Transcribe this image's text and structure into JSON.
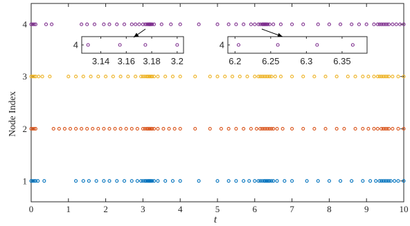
{
  "chart_data": {
    "type": "scatter",
    "xlabel": "t",
    "ylabel": "Node Index",
    "xlim": [
      0,
      10
    ],
    "ylim": [
      0.6,
      4.4
    ],
    "x_ticks": [
      0,
      1,
      2,
      3,
      4,
      5,
      6,
      7,
      8,
      9,
      10
    ],
    "y_ticks": [
      1,
      2,
      3,
      4
    ],
    "grid": false,
    "legend": "none",
    "marker": "open-circle",
    "series": [
      {
        "node": 4,
        "color": "#7e2f8e",
        "x": [
          0.0,
          0.04,
          0.08,
          0.12,
          0.4,
          0.55,
          1.35,
          1.5,
          1.7,
          1.95,
          2.1,
          2.3,
          2.5,
          2.7,
          2.8,
          2.9,
          3.0,
          3.06,
          3.1,
          3.13,
          3.15,
          3.17,
          3.18,
          3.19,
          3.2,
          3.22,
          3.25,
          3.3,
          3.5,
          3.75,
          4.0,
          4.5,
          5.0,
          5.3,
          5.5,
          5.7,
          5.9,
          6.0,
          6.1,
          6.15,
          6.2,
          6.22,
          6.24,
          6.26,
          6.28,
          6.3,
          6.32,
          6.35,
          6.4,
          6.5,
          6.7,
          7.0,
          7.3,
          7.7,
          8.0,
          8.3,
          8.6,
          8.8,
          9.0,
          9.2,
          9.3,
          9.35,
          9.4,
          9.45,
          9.5,
          9.55,
          9.6,
          9.7,
          9.8,
          9.9,
          10.0
        ]
      },
      {
        "node": 3,
        "color": "#edb120",
        "x": [
          0.0,
          0.04,
          0.08,
          0.12,
          0.2,
          0.3,
          0.5,
          1.0,
          1.2,
          1.4,
          1.6,
          1.8,
          2.0,
          2.2,
          2.4,
          2.6,
          2.8,
          2.95,
          3.0,
          3.05,
          3.1,
          3.13,
          3.16,
          3.19,
          3.22,
          3.25,
          3.3,
          3.4,
          3.6,
          3.8,
          4.0,
          4.4,
          4.8,
          5.0,
          5.2,
          5.4,
          5.6,
          5.8,
          6.0,
          6.1,
          6.15,
          6.2,
          6.25,
          6.3,
          6.35,
          6.4,
          6.45,
          6.55,
          6.7,
          7.0,
          7.3,
          7.6,
          7.9,
          8.2,
          8.5,
          8.7,
          8.9,
          9.05,
          9.2,
          9.3,
          9.35,
          9.4,
          9.45,
          9.5,
          9.55,
          9.6,
          9.7,
          9.85,
          10.0
        ]
      },
      {
        "node": 2,
        "color": "#d95319",
        "x": [
          0.0,
          0.04,
          0.08,
          0.12,
          0.6,
          0.75,
          0.9,
          1.05,
          1.2,
          1.35,
          1.5,
          1.65,
          1.8,
          1.95,
          2.1,
          2.25,
          2.4,
          2.55,
          2.7,
          2.85,
          3.0,
          3.05,
          3.1,
          3.13,
          3.16,
          3.19,
          3.22,
          3.25,
          3.3,
          3.4,
          3.55,
          3.7,
          3.85,
          4.0,
          4.4,
          4.8,
          5.1,
          5.3,
          5.5,
          5.7,
          5.9,
          6.05,
          6.15,
          6.2,
          6.25,
          6.3,
          6.35,
          6.4,
          6.45,
          6.5,
          6.6,
          6.75,
          7.0,
          7.3,
          7.6,
          7.9,
          8.2,
          8.4,
          8.7,
          8.9,
          9.05,
          9.2,
          9.3,
          9.4,
          9.45,
          9.5,
          9.55,
          9.6,
          9.7,
          9.85,
          10.0
        ]
      },
      {
        "node": 1,
        "color": "#0072bd",
        "x": [
          0.0,
          0.04,
          0.08,
          0.12,
          0.18,
          0.35,
          1.2,
          1.4,
          1.55,
          1.75,
          1.95,
          2.1,
          2.3,
          2.5,
          2.7,
          2.85,
          2.95,
          3.0,
          3.05,
          3.08,
          3.11,
          3.14,
          3.16,
          3.18,
          3.2,
          3.22,
          3.25,
          3.3,
          3.4,
          3.6,
          3.8,
          4.0,
          4.5,
          5.0,
          5.3,
          5.5,
          5.7,
          5.85,
          6.0,
          6.1,
          6.15,
          6.2,
          6.25,
          6.28,
          6.31,
          6.34,
          6.37,
          6.4,
          6.45,
          6.5,
          6.6,
          6.8,
          7.0,
          7.4,
          7.7,
          8.0,
          8.3,
          8.6,
          8.9,
          9.1,
          9.25,
          9.35,
          9.4,
          9.45,
          9.5,
          9.55,
          9.6,
          9.65,
          9.75,
          9.85,
          10.0
        ]
      }
    ],
    "insets": [
      {
        "node": 4,
        "xlim": [
          3.125,
          3.205
        ],
        "x_ticks": [
          3.14,
          3.16,
          3.18,
          3.2
        ],
        "y_ticks": [
          4
        ],
        "x": [
          3.13,
          3.155,
          3.175,
          3.2
        ]
      },
      {
        "node": 4,
        "xlim": [
          6.19,
          6.385
        ],
        "x_ticks": [
          6.2,
          6.25,
          6.3,
          6.35
        ],
        "y_ticks": [
          4
        ],
        "x": [
          6.205,
          6.26,
          6.315,
          6.365
        ]
      }
    ]
  }
}
